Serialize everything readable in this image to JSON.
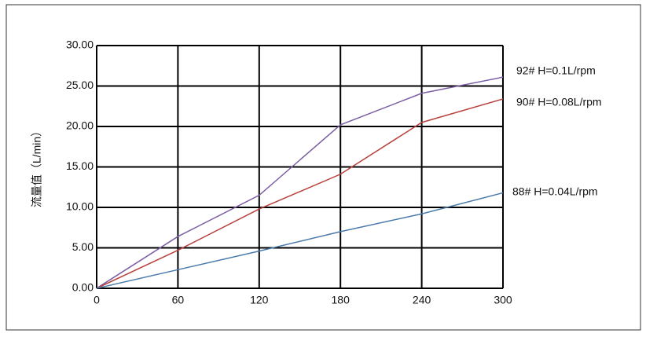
{
  "chart_data": {
    "type": "line",
    "y_label": "流量值（L/min）",
    "x": [
      0,
      60,
      120,
      180,
      240,
      300
    ],
    "xlim": [
      0,
      300
    ],
    "xticks": [
      0,
      60,
      120,
      180,
      240,
      300
    ],
    "ylim": [
      0,
      30
    ],
    "yticks": [
      {
        "value": 0,
        "label": "0.00"
      },
      {
        "value": 5,
        "label": "5.00"
      },
      {
        "value": 10,
        "label": "10.00"
      },
      {
        "value": 15,
        "label": "15.00"
      },
      {
        "value": 20,
        "label": "20.00"
      },
      {
        "value": 25,
        "label": "25.00"
      },
      {
        "value": 30,
        "label": "30.00"
      }
    ],
    "grid": true,
    "series": [
      {
        "name": "92# H=0.1L/rpm",
        "color": "#7b5fa3",
        "values": [
          0,
          6.4,
          11.5,
          20.2,
          24.1,
          26.1
        ]
      },
      {
        "name": "90# H=0.08L/rpm",
        "color": "#b8413c",
        "values": [
          0,
          4.7,
          9.8,
          14.1,
          20.5,
          23.4
        ]
      },
      {
        "name": "88# H=0.04L/rpm",
        "color": "#4a7bab",
        "values": [
          0,
          2.3,
          4.6,
          7.0,
          9.2,
          11.8
        ]
      }
    ]
  }
}
